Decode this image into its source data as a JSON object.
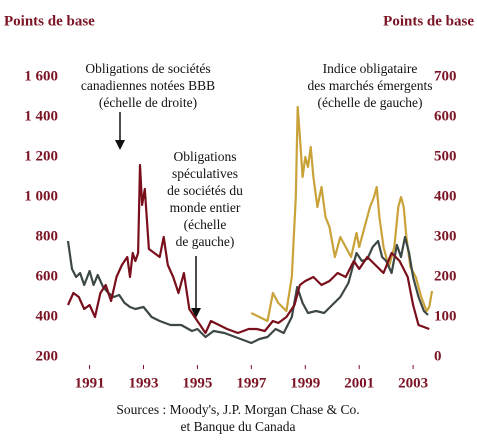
{
  "chart_data": {
    "type": "line",
    "ylabel": "Points de base",
    "y2label": "Points de base",
    "xlim": [
      1990.2,
      2003.7
    ],
    "xticks": [
      1991,
      1993,
      1995,
      1997,
      1999,
      2001,
      2003
    ],
    "ylim": [
      200,
      1600
    ],
    "yticks": [
      200,
      400,
      600,
      800,
      {
        "value": 1000,
        "label": "1 000"
      },
      {
        "value": 1200,
        "label": "1 200"
      },
      {
        "value": 1400,
        "label": "1 400"
      },
      {
        "value": 1600,
        "label": "1 600"
      }
    ],
    "y2lim": [
      0,
      700
    ],
    "y2ticks": [
      0,
      100,
      200,
      300,
      400,
      500,
      600,
      700
    ],
    "series": [
      {
        "name": "Indice obligataire des marchés émergents",
        "color": "#c9a23a",
        "x": [
          1997.0,
          1997.3,
          1997.6,
          1997.8,
          1998.0,
          1998.3,
          1998.5,
          1998.65,
          1998.72,
          1998.8,
          1998.9,
          1999.0,
          1999.1,
          1999.2,
          1999.3,
          1999.45,
          1999.6,
          1999.75,
          1999.9,
          2000.1,
          2000.3,
          2000.5,
          2000.7,
          2000.9,
          2001.0,
          2001.2,
          2001.4,
          2001.55,
          2001.65,
          2001.75,
          2001.9,
          2002.1,
          2002.3,
          2002.45,
          2002.55,
          2002.65,
          2002.75,
          2002.9,
          2003.1,
          2003.3,
          2003.5,
          2003.6,
          2003.7
        ],
        "values": [
          420,
          400,
          380,
          520,
          470,
          430,
          600,
          1000,
          1450,
          1300,
          1100,
          1200,
          1150,
          1250,
          1100,
          950,
          1050,
          900,
          850,
          700,
          800,
          750,
          700,
          820,
          750,
          850,
          950,
          1000,
          1050,
          900,
          750,
          650,
          750,
          950,
          1000,
          950,
          800,
          650,
          600,
          500,
          430,
          450,
          530
        ]
      },
      {
        "name": "Obligations spéculatives de sociétés du monde entier",
        "color": "#3d4844",
        "x": [
          1990.2,
          1990.35,
          1990.5,
          1990.65,
          1990.8,
          1991.0,
          1991.15,
          1991.3,
          1991.5,
          1991.7,
          1991.9,
          1992.1,
          1992.3,
          1992.5,
          1992.7,
          1993.0,
          1993.3,
          1993.6,
          1994.0,
          1994.4,
          1994.8,
          1995.0,
          1995.3,
          1995.6,
          1996.0,
          1996.4,
          1996.8,
          1997.0,
          1997.3,
          1997.6,
          1997.9,
          1998.2,
          1998.5,
          1998.7,
          1998.9,
          1999.1,
          1999.4,
          1999.7,
          2000.0,
          2000.3,
          2000.6,
          2000.9,
          2001.1,
          2001.3,
          2001.5,
          2001.7,
          2001.85,
          2002.0,
          2002.2,
          2002.4,
          2002.55,
          2002.7,
          2002.85,
          2003.0,
          2003.2,
          2003.4,
          2003.55
        ],
        "values": [
          780,
          640,
          600,
          620,
          560,
          630,
          560,
          610,
          550,
          520,
          500,
          510,
          470,
          450,
          440,
          450,
          400,
          380,
          360,
          360,
          330,
          340,
          300,
          330,
          320,
          300,
          280,
          270,
          290,
          300,
          340,
          320,
          400,
          550,
          470,
          420,
          430,
          420,
          460,
          500,
          570,
          720,
          680,
          690,
          750,
          780,
          700,
          680,
          620,
          760,
          700,
          800,
          720,
          600,
          500,
          430,
          410
        ]
      },
      {
        "name": "Obligations de sociétés canadiennes notées BBB",
        "color": "#7a0f1c",
        "axis": "y2",
        "x": [
          1990.2,
          1990.4,
          1990.6,
          1990.8,
          1991.0,
          1991.2,
          1991.4,
          1991.6,
          1991.8,
          1992.0,
          1992.2,
          1992.4,
          1992.5,
          1992.6,
          1992.7,
          1992.8,
          1992.87,
          1992.95,
          1993.05,
          1993.2,
          1993.4,
          1993.6,
          1993.75,
          1993.9,
          1994.1,
          1994.3,
          1994.5,
          1994.7,
          1994.9,
          1995.1,
          1995.3,
          1995.5,
          1995.8,
          1996.1,
          1996.5,
          1996.9,
          1997.2,
          1997.5,
          1997.8,
          1998.0,
          1998.3,
          1998.6,
          1998.8,
          1999.0,
          1999.3,
          1999.6,
          1999.9,
          2000.2,
          2000.5,
          2000.8,
          2001.0,
          2001.3,
          2001.6,
          2001.9,
          2002.2,
          2002.5,
          2002.8,
          2003.0,
          2003.2,
          2003.4,
          2003.6
        ],
        "values": [
          130,
          160,
          150,
          120,
          130,
          100,
          160,
          180,
          140,
          200,
          230,
          250,
          200,
          260,
          240,
          260,
          480,
          380,
          420,
          270,
          260,
          250,
          300,
          230,
          200,
          160,
          210,
          120,
          100,
          80,
          60,
          90,
          80,
          70,
          60,
          70,
          70,
          65,
          90,
          85,
          100,
          130,
          180,
          190,
          200,
          180,
          190,
          210,
          200,
          240,
          220,
          250,
          230,
          210,
          260,
          240,
          200,
          130,
          80,
          75,
          70
        ]
      }
    ],
    "annotations": [
      {
        "lines": [
          "Obligations de sociétés",
          "canadiennes notées BBB",
          "(échelle de droite)"
        ]
      },
      {
        "lines": [
          "Obligations",
          "spéculatives",
          "de sociétés du",
          "monde entier",
          "(échelle",
          "de gauche)"
        ]
      },
      {
        "lines": [
          "Indice obligataire",
          "des marchés émergents",
          "(échelle de gauche)"
        ]
      }
    ],
    "source": [
      "Sources : Moody's, J.P. Morgan Chase & Co.",
      "et Banque du Canada"
    ]
  }
}
